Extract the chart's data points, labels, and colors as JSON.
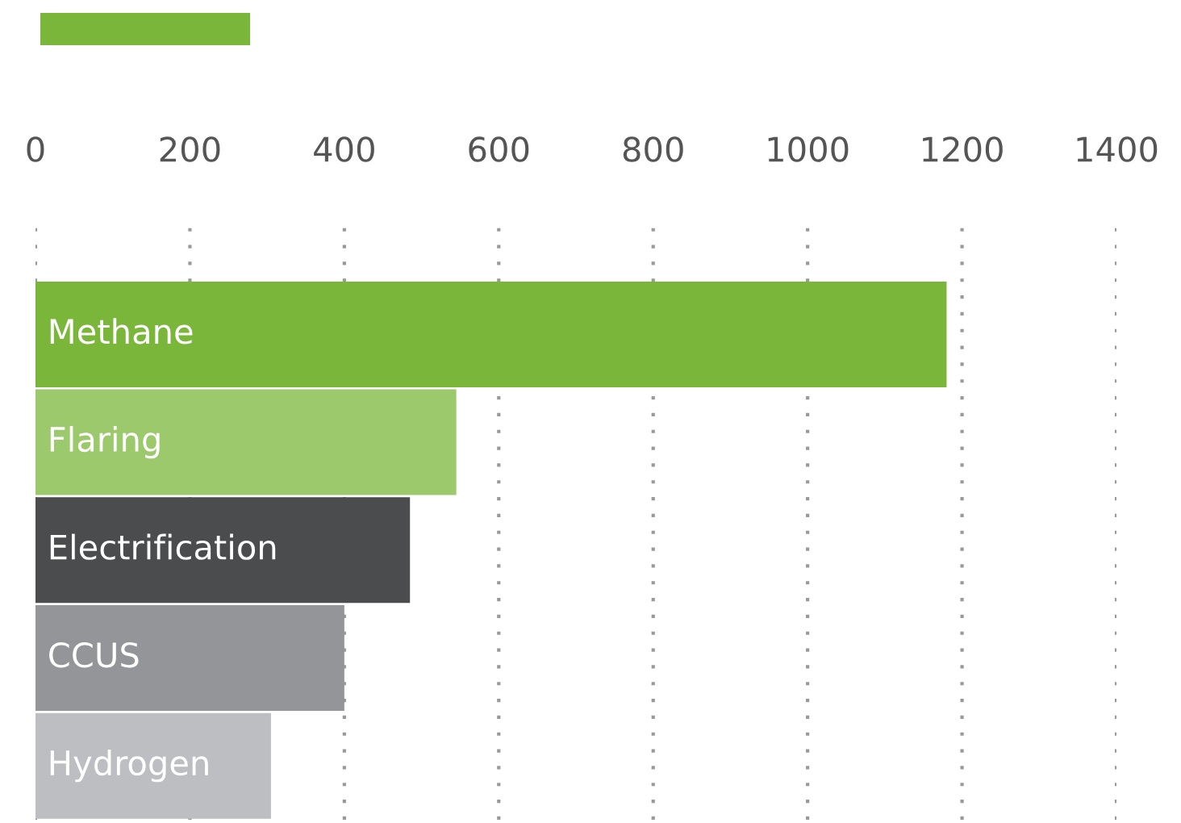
{
  "chart_data": {
    "type": "bar",
    "orientation": "horizontal",
    "categories": [
      "Methane",
      "Flaring",
      "Electrification",
      "CCUS",
      "Hydrogen"
    ],
    "values": [
      1180,
      545,
      485,
      400,
      305
    ],
    "colors": [
      "#7ab63a",
      "#9cc96c",
      "#4b4c4e",
      "#949598",
      "#bdbec1"
    ],
    "xlim": [
      0,
      1400
    ],
    "xticks": [
      0,
      200,
      400,
      600,
      800,
      1000,
      1200,
      1400
    ],
    "grid": "x"
  }
}
